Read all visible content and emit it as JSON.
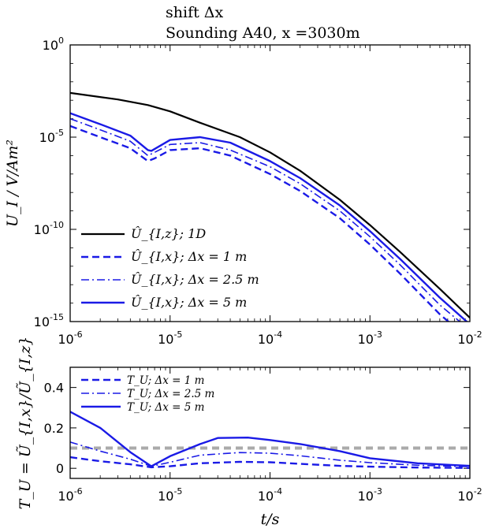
{
  "title_lines": [
    "shift Δx",
    "Sounding A40, x =3030m"
  ],
  "chart_data": [
    {
      "type": "line",
      "xscale": "log",
      "yscale": "log",
      "xlim": [
        1e-06,
        0.01
      ],
      "ylim": [
        1e-15,
        1
      ],
      "ylabel": "U_I / V/Am²",
      "x_ticks": [
        "10^-6",
        "10^-5",
        "10^-4",
        "10^-3",
        "10^-2"
      ],
      "y_ticks": [
        "10^0",
        "10^-5",
        "10^-10",
        "10^-15"
      ],
      "legend_position": "bottom-left",
      "series": [
        {
          "name": "Û_{I,z};  1D",
          "color": "#000000",
          "style": "solid-thin",
          "points": [
            [
              1e-06,
              0.0025
            ],
            [
              3e-06,
              0.0011
            ],
            [
              6e-06,
              0.00055
            ],
            [
              1e-05,
              0.00025
            ],
            [
              2e-05,
              6e-05
            ],
            [
              5e-05,
              1e-05
            ],
            [
              0.0001,
              1.5e-06
            ],
            [
              0.0002,
              1.5e-07
            ],
            [
              0.0005,
              4e-09
            ],
            [
              0.001,
              1.7e-10
            ],
            [
              0.002,
              6e-12
            ],
            [
              0.005,
              6e-14
            ],
            [
              0.01,
              1.6e-15
            ]
          ]
        },
        {
          "name": "Û_{I,x};  Δx = 1 m",
          "color": "#1a1ae6",
          "style": "dashed",
          "points": [
            [
              1e-06,
              4e-05
            ],
            [
              2e-06,
              1e-05
            ],
            [
              4e-06,
              2.5e-06
            ],
            [
              6e-06,
              5e-07
            ],
            [
              7e-06,
              7e-07
            ],
            [
              1e-05,
              2e-06
            ],
            [
              2e-05,
              2.5e-06
            ],
            [
              4e-05,
              1e-06
            ],
            [
              0.0001,
              1e-07
            ],
            [
              0.0002,
              1.2e-08
            ],
            [
              0.0005,
              4e-10
            ],
            [
              0.001,
              1.5e-11
            ],
            [
              0.002,
              4e-13
            ],
            [
              0.005,
              2.5e-15
            ],
            [
              0.01,
              1e-16
            ]
          ]
        },
        {
          "name": "Û_{I,x};  Δx = 2.5 m",
          "color": "#1a1ae6",
          "style": "dashdot",
          "points": [
            [
              1e-06,
              0.0001
            ],
            [
              2e-06,
              2.5e-05
            ],
            [
              4e-06,
              6e-06
            ],
            [
              6e-06,
              1e-06
            ],
            [
              7e-06,
              1.5e-06
            ],
            [
              1e-05,
              4e-06
            ],
            [
              2e-05,
              5e-06
            ],
            [
              4e-05,
              2e-06
            ],
            [
              0.0001,
              2.5e-07
            ],
            [
              0.0002,
              3e-08
            ],
            [
              0.0005,
              1e-09
            ],
            [
              0.001,
              4e-11
            ],
            [
              0.002,
              1.2e-12
            ],
            [
              0.005,
              8e-15
            ],
            [
              0.01,
              3.5e-16
            ]
          ]
        },
        {
          "name": "Û_{I,x};  Δx = 5 m",
          "color": "#1a1ae6",
          "style": "solid",
          "points": [
            [
              1e-06,
              0.0002
            ],
            [
              2e-06,
              5e-05
            ],
            [
              4e-06,
              1.2e-05
            ],
            [
              6e-06,
              2e-06
            ],
            [
              6.5e-06,
              1.8e-06
            ],
            [
              1e-05,
              7e-06
            ],
            [
              2e-05,
              1e-05
            ],
            [
              4e-05,
              5e-06
            ],
            [
              0.0001,
              5e-07
            ],
            [
              0.0002,
              6e-08
            ],
            [
              0.0005,
              2e-09
            ],
            [
              0.001,
              8e-11
            ],
            [
              0.002,
              2.5e-12
            ],
            [
              0.005,
              2e-14
            ],
            [
              0.01,
              7e-16
            ]
          ]
        }
      ]
    },
    {
      "type": "line",
      "xscale": "log",
      "yscale": "linear",
      "xlim": [
        1e-06,
        0.01
      ],
      "ylim": [
        -0.05,
        0.5
      ],
      "xlabel": "t/s",
      "ylabel": "T_U = Ũ_{I,x}/Ũ_{I,z}",
      "x_ticks": [
        "10^-6",
        "10^-5",
        "10^-4",
        "10^-3",
        "10^-2"
      ],
      "y_ticks": [
        "0",
        "0.2",
        "0.4"
      ],
      "reference_line": {
        "y": 0.1,
        "color": "#aaaaaa",
        "style": "dashed"
      },
      "legend_position": "top-left",
      "series": [
        {
          "name": "T_U;  Δx = 1 m",
          "color": "#1a1ae6",
          "style": "dashed",
          "points": [
            [
              1e-06,
              0.055
            ],
            [
              2e-06,
              0.035
            ],
            [
              4e-06,
              0.02
            ],
            [
              6.5e-06,
              0.005
            ],
            [
              1e-05,
              0.01
            ],
            [
              2e-05,
              0.025
            ],
            [
              5e-05,
              0.032
            ],
            [
              0.0001,
              0.03
            ],
            [
              0.0002,
              0.022
            ],
            [
              0.0005,
              0.012
            ],
            [
              0.001,
              0.008
            ],
            [
              0.003,
              0.004
            ],
            [
              0.01,
              0.002
            ]
          ]
        },
        {
          "name": "T_U;  Δx = 2.5 m",
          "color": "#1a1ae6",
          "style": "dashdot",
          "points": [
            [
              1e-06,
              0.13
            ],
            [
              2e-06,
              0.085
            ],
            [
              4e-06,
              0.045
            ],
            [
              6.5e-06,
              0.01
            ],
            [
              1e-05,
              0.03
            ],
            [
              2e-05,
              0.065
            ],
            [
              5e-05,
              0.078
            ],
            [
              0.0001,
              0.075
            ],
            [
              0.0002,
              0.062
            ],
            [
              0.0005,
              0.04
            ],
            [
              0.001,
              0.028
            ],
            [
              0.003,
              0.015
            ],
            [
              0.01,
              0.008
            ]
          ]
        },
        {
          "name": "T_U;  Δx = 5 m",
          "color": "#1a1ae6",
          "style": "solid",
          "points": [
            [
              1e-06,
              0.28
            ],
            [
              2e-06,
              0.2
            ],
            [
              3e-06,
              0.13
            ],
            [
              4e-06,
              0.08
            ],
            [
              6.5e-06,
              0.01
            ],
            [
              1e-05,
              0.06
            ],
            [
              2e-05,
              0.12
            ],
            [
              3e-05,
              0.15
            ],
            [
              6e-05,
              0.152
            ],
            [
              0.0001,
              0.14
            ],
            [
              0.0002,
              0.12
            ],
            [
              0.0005,
              0.085
            ],
            [
              0.001,
              0.05
            ],
            [
              0.003,
              0.025
            ],
            [
              0.01,
              0.012
            ]
          ]
        }
      ]
    }
  ]
}
